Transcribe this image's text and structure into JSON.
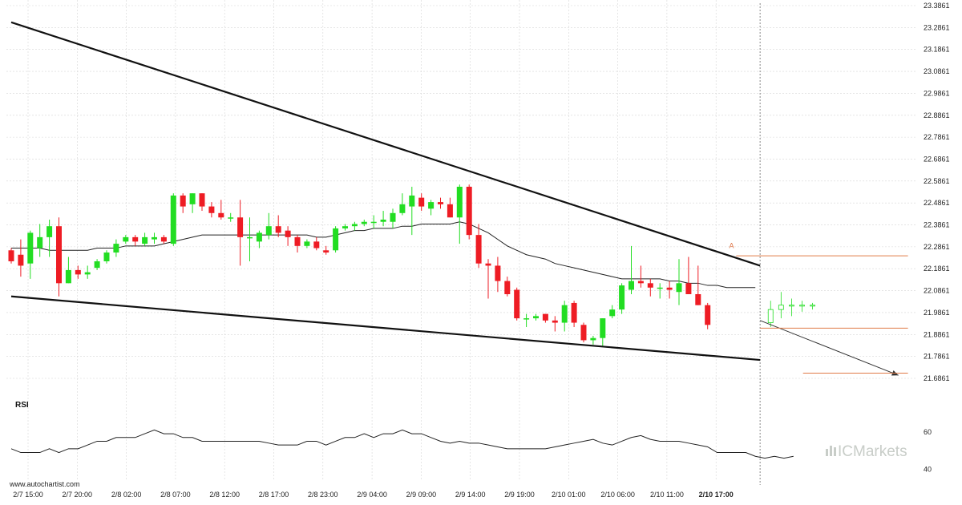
{
  "chart_data": [
    {
      "type": "candlestick",
      "title": "",
      "y_ticks": [
        "23.3861",
        "23.2861",
        "23.1861",
        "23.0861",
        "22.9861",
        "22.8861",
        "22.7861",
        "22.6861",
        "22.5861",
        "22.4861",
        "22.3861",
        "22.2861",
        "22.1861",
        "22.0861",
        "21.9861",
        "21.8861",
        "21.7861",
        "21.6861"
      ],
      "ylim": [
        21.63,
        23.4
      ],
      "x_ticks": [
        "2/7 15:00",
        "2/7 20:00",
        "2/8 02:00",
        "2/8 07:00",
        "2/8 12:00",
        "2/8 17:00",
        "2/8 23:00",
        "2/9 04:00",
        "2/9 09:00",
        "2/9 14:00",
        "2/9 19:00",
        "2/10 01:00",
        "2/10 06:00",
        "2/10 11:00",
        "2/10 17:00"
      ],
      "highlighted_x_tick": "2/10 17:00",
      "grid": true,
      "colors": {
        "up": "#22dd22",
        "down": "#ee1c24",
        "pattern": "#111111",
        "level": "#e07b48",
        "moving_average": "#222222",
        "grid": "#d6d6d6",
        "separator": "#888888"
      },
      "candles": [
        {
          "o": 22.27,
          "h": 22.28,
          "l": 22.21,
          "c": 22.22
        },
        {
          "o": 22.25,
          "h": 22.32,
          "l": 22.15,
          "c": 22.2
        },
        {
          "o": 22.21,
          "h": 22.36,
          "l": 22.14,
          "c": 22.35
        },
        {
          "o": 22.28,
          "h": 22.39,
          "l": 22.24,
          "c": 22.33
        },
        {
          "o": 22.33,
          "h": 22.41,
          "l": 22.24,
          "c": 22.38
        },
        {
          "o": 22.38,
          "h": 22.42,
          "l": 22.06,
          "c": 22.12
        },
        {
          "o": 22.12,
          "h": 22.24,
          "l": 22.12,
          "c": 22.18
        },
        {
          "o": 22.18,
          "h": 22.2,
          "l": 22.14,
          "c": 22.16
        },
        {
          "o": 22.16,
          "h": 22.2,
          "l": 22.14,
          "c": 22.17
        },
        {
          "o": 22.19,
          "h": 22.23,
          "l": 22.18,
          "c": 22.22
        },
        {
          "o": 22.22,
          "h": 22.27,
          "l": 22.21,
          "c": 22.26
        },
        {
          "o": 22.26,
          "h": 22.32,
          "l": 22.24,
          "c": 22.3
        },
        {
          "o": 22.31,
          "h": 22.34,
          "l": 22.3,
          "c": 22.33
        },
        {
          "o": 22.33,
          "h": 22.34,
          "l": 22.29,
          "c": 22.31
        },
        {
          "o": 22.3,
          "h": 22.35,
          "l": 22.29,
          "c": 22.33
        },
        {
          "o": 22.32,
          "h": 22.35,
          "l": 22.3,
          "c": 22.33
        },
        {
          "o": 22.33,
          "h": 22.34,
          "l": 22.3,
          "c": 22.31
        },
        {
          "o": 22.3,
          "h": 22.53,
          "l": 22.29,
          "c": 22.52
        },
        {
          "o": 22.52,
          "h": 22.53,
          "l": 22.44,
          "c": 22.47
        },
        {
          "o": 22.48,
          "h": 22.53,
          "l": 22.44,
          "c": 22.53
        },
        {
          "o": 22.53,
          "h": 22.53,
          "l": 22.45,
          "c": 22.47
        },
        {
          "o": 22.47,
          "h": 22.49,
          "l": 22.42,
          "c": 22.44
        },
        {
          "o": 22.44,
          "h": 22.5,
          "l": 22.41,
          "c": 22.42
        },
        {
          "o": 22.42,
          "h": 22.44,
          "l": 22.4,
          "c": 22.42
        },
        {
          "o": 22.42,
          "h": 22.5,
          "l": 22.2,
          "c": 22.33
        },
        {
          "o": 22.33,
          "h": 22.42,
          "l": 22.22,
          "c": 22.33
        },
        {
          "o": 22.31,
          "h": 22.36,
          "l": 22.28,
          "c": 22.35
        },
        {
          "o": 22.34,
          "h": 22.44,
          "l": 22.32,
          "c": 22.38
        },
        {
          "o": 22.38,
          "h": 22.43,
          "l": 22.33,
          "c": 22.35
        },
        {
          "o": 22.36,
          "h": 22.38,
          "l": 22.29,
          "c": 22.33
        },
        {
          "o": 22.33,
          "h": 22.34,
          "l": 22.26,
          "c": 22.29
        },
        {
          "o": 22.29,
          "h": 22.32,
          "l": 22.28,
          "c": 22.31
        },
        {
          "o": 22.31,
          "h": 22.33,
          "l": 22.27,
          "c": 22.28
        },
        {
          "o": 22.27,
          "h": 22.29,
          "l": 22.25,
          "c": 22.26
        },
        {
          "o": 22.27,
          "h": 22.38,
          "l": 22.26,
          "c": 22.37
        },
        {
          "o": 22.37,
          "h": 22.39,
          "l": 22.36,
          "c": 22.38
        },
        {
          "o": 22.38,
          "h": 22.4,
          "l": 22.36,
          "c": 22.39
        },
        {
          "o": 22.39,
          "h": 22.41,
          "l": 22.38,
          "c": 22.4
        },
        {
          "o": 22.4,
          "h": 22.43,
          "l": 22.37,
          "c": 22.4
        },
        {
          "o": 22.4,
          "h": 22.45,
          "l": 22.38,
          "c": 22.41
        },
        {
          "o": 22.4,
          "h": 22.46,
          "l": 22.37,
          "c": 22.44
        },
        {
          "o": 22.44,
          "h": 22.53,
          "l": 22.43,
          "c": 22.48
        },
        {
          "o": 22.47,
          "h": 22.56,
          "l": 22.34,
          "c": 22.52
        },
        {
          "o": 22.51,
          "h": 22.53,
          "l": 22.45,
          "c": 22.47
        },
        {
          "o": 22.46,
          "h": 22.5,
          "l": 22.43,
          "c": 22.49
        },
        {
          "o": 22.49,
          "h": 22.51,
          "l": 22.46,
          "c": 22.48
        },
        {
          "o": 22.48,
          "h": 22.51,
          "l": 22.42,
          "c": 22.42
        },
        {
          "o": 22.42,
          "h": 22.57,
          "l": 22.3,
          "c": 22.56
        },
        {
          "o": 22.56,
          "h": 22.57,
          "l": 22.32,
          "c": 22.34
        },
        {
          "o": 22.34,
          "h": 22.39,
          "l": 22.19,
          "c": 22.21
        },
        {
          "o": 22.21,
          "h": 22.23,
          "l": 22.05,
          "c": 22.2
        },
        {
          "o": 22.2,
          "h": 22.24,
          "l": 22.08,
          "c": 22.13
        },
        {
          "o": 22.13,
          "h": 22.15,
          "l": 22.06,
          "c": 22.07
        },
        {
          "o": 22.09,
          "h": 22.1,
          "l": 21.95,
          "c": 21.96
        },
        {
          "o": 21.96,
          "h": 21.98,
          "l": 21.92,
          "c": 21.96
        },
        {
          "o": 21.96,
          "h": 21.98,
          "l": 21.95,
          "c": 21.97
        },
        {
          "o": 21.98,
          "h": 21.98,
          "l": 21.94,
          "c": 21.95
        },
        {
          "o": 21.95,
          "h": 21.97,
          "l": 21.9,
          "c": 21.94
        },
        {
          "o": 21.94,
          "h": 22.04,
          "l": 21.9,
          "c": 22.02
        },
        {
          "o": 22.03,
          "h": 22.04,
          "l": 21.92,
          "c": 21.94
        },
        {
          "o": 21.93,
          "h": 21.94,
          "l": 21.85,
          "c": 21.86
        },
        {
          "o": 21.86,
          "h": 21.88,
          "l": 21.84,
          "c": 21.87
        },
        {
          "o": 21.87,
          "h": 21.96,
          "l": 21.83,
          "c": 21.96
        },
        {
          "o": 21.97,
          "h": 22.02,
          "l": 21.96,
          "c": 22.0
        },
        {
          "o": 22.0,
          "h": 22.12,
          "l": 21.98,
          "c": 22.11
        },
        {
          "o": 22.09,
          "h": 22.29,
          "l": 22.07,
          "c": 22.13
        },
        {
          "o": 22.13,
          "h": 22.2,
          "l": 22.1,
          "c": 22.12
        },
        {
          "o": 22.12,
          "h": 22.14,
          "l": 22.06,
          "c": 22.1
        },
        {
          "o": 22.1,
          "h": 22.12,
          "l": 22.05,
          "c": 22.1
        },
        {
          "o": 22.1,
          "h": 22.13,
          "l": 22.05,
          "c": 22.09
        },
        {
          "o": 22.08,
          "h": 22.23,
          "l": 22.02,
          "c": 22.12
        },
        {
          "o": 22.12,
          "h": 22.24,
          "l": 22.07,
          "c": 22.07
        },
        {
          "o": 22.07,
          "h": 22.2,
          "l": 22.02,
          "c": 22.02
        },
        {
          "o": 22.02,
          "h": 22.03,
          "l": 21.91,
          "c": 21.93
        }
      ],
      "projection_candles": [
        {
          "o": 21.94,
          "h": 22.04,
          "l": 21.92,
          "c": 22.0
        },
        {
          "o": 22.0,
          "h": 22.08,
          "l": 21.96,
          "c": 22.02
        },
        {
          "o": 22.02,
          "h": 22.05,
          "l": 21.97,
          "c": 22.02
        },
        {
          "o": 22.02,
          "h": 22.04,
          "l": 21.99,
          "c": 22.02
        },
        {
          "o": 22.02,
          "h": 22.03,
          "l": 22.0,
          "c": 22.02
        }
      ],
      "moving_average": [
        22.28,
        22.28,
        22.28,
        22.28,
        22.27,
        22.27,
        22.27,
        22.27,
        22.27,
        22.28,
        22.28,
        22.28,
        22.29,
        22.29,
        22.29,
        22.29,
        22.3,
        22.31,
        22.32,
        22.33,
        22.34,
        22.34,
        22.34,
        22.34,
        22.34,
        22.34,
        22.34,
        22.34,
        22.34,
        22.34,
        22.34,
        22.34,
        22.33,
        22.33,
        22.34,
        22.35,
        22.36,
        22.36,
        22.37,
        22.37,
        22.37,
        22.38,
        22.38,
        22.39,
        22.39,
        22.39,
        22.39,
        22.4,
        22.39,
        22.37,
        22.35,
        22.32,
        22.29,
        22.27,
        22.25,
        22.24,
        22.23,
        22.21,
        22.2,
        22.19,
        22.18,
        22.17,
        22.16,
        22.15,
        22.14,
        22.14,
        22.14,
        22.14,
        22.14,
        22.13,
        22.13,
        22.12,
        22.12,
        22.11,
        22.11,
        22.1,
        22.1,
        22.1,
        22.1
      ],
      "pattern_lines": [
        {
          "name": "resistance",
          "points": [
            [
              0,
              23.31
            ],
            [
              78.5,
              22.2
            ]
          ]
        },
        {
          "name": "support",
          "points": [
            [
              0,
              22.06
            ],
            [
              78.5,
              21.77
            ]
          ]
        },
        {
          "name": "projection",
          "points": [
            [
              78.5,
              21.95
            ],
            [
              93,
              21.7
            ]
          ]
        }
      ],
      "levels": [
        {
          "name": "breakout-level",
          "value": 22.245,
          "from": 76,
          "to": 94
        },
        {
          "name": "current-level",
          "value": 21.915,
          "from": 78.5,
          "to": 94
        },
        {
          "name": "target-level",
          "value": 21.71,
          "from": 83,
          "to": 94
        }
      ],
      "marker": {
        "label": "A",
        "index": 75.5,
        "value": 22.27
      },
      "separator_index": 78.5
    },
    {
      "type": "line",
      "title": "RSI",
      "y_ticks": [
        "60",
        "40"
      ],
      "ylim": [
        36,
        68
      ],
      "values": [
        51,
        49,
        49,
        49,
        51,
        49,
        51,
        51,
        53,
        55,
        55,
        57,
        57,
        57,
        59,
        61,
        59,
        59,
        57,
        57,
        55,
        55,
        55,
        55,
        55,
        55,
        55,
        54,
        53,
        53,
        53,
        55,
        55,
        53,
        55,
        57,
        57,
        59,
        57,
        59,
        59,
        61,
        59,
        59,
        57,
        55,
        54,
        55,
        54,
        54,
        53,
        52,
        51,
        51,
        51,
        51,
        51,
        52,
        53,
        54,
        55,
        56,
        54,
        53,
        55,
        57,
        58,
        56,
        55,
        55,
        55,
        54,
        53,
        52,
        49,
        49,
        49,
        49,
        47,
        46,
        47,
        46,
        47
      ]
    }
  ],
  "source_text": "www.autochartist.com",
  "brand": {
    "text": "ICMarkets",
    "icon": "bar-chart-icon"
  }
}
